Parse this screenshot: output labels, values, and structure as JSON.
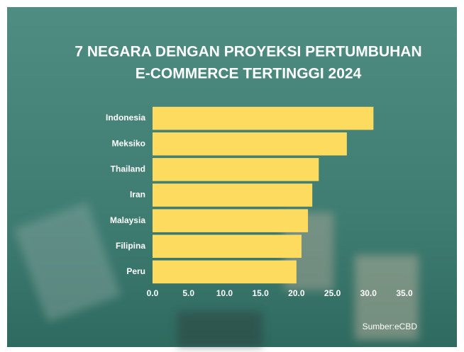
{
  "chart_data": {
    "type": "bar",
    "orientation": "horizontal",
    "title": [
      "7 NEGARA DENGAN PROYEKSI PERTUMBUHAN",
      "E-COMMERCE TERTINGGI 2024"
    ],
    "categories": [
      "Indonesia",
      "Meksiko",
      "Thailand",
      "Iran",
      "Malaysia",
      "Filipina",
      "Peru"
    ],
    "values": [
      30.7,
      27.0,
      23.1,
      22.2,
      21.6,
      20.7,
      20.0
    ],
    "color": "#fddb5f",
    "xlim": [
      0,
      35
    ],
    "xticks": [
      {
        "value": 0,
        "label": "0.0"
      },
      {
        "value": 5,
        "label": "5.0"
      },
      {
        "value": 10,
        "label": "10.0"
      },
      {
        "value": 15,
        "label": "15.0"
      },
      {
        "value": 20,
        "label": "20.0"
      },
      {
        "value": 25,
        "label": "25.0"
      },
      {
        "value": 30,
        "label": "30.0"
      },
      {
        "value": 35,
        "label": "35.0"
      }
    ],
    "grid": false,
    "source": "Sumber:eCBD"
  }
}
